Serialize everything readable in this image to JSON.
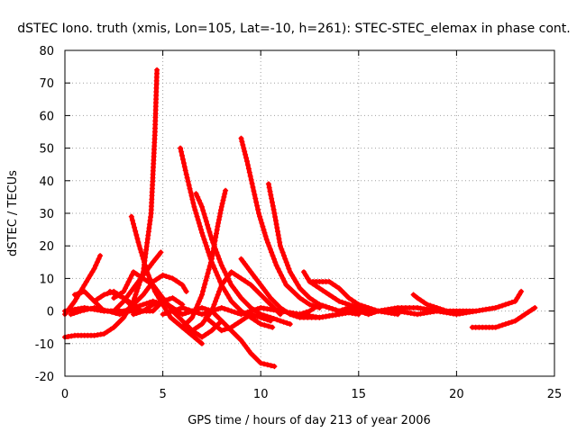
{
  "chart_data": {
    "type": "scatter",
    "title": "dSTEC Iono. truth (xmis, Lon=105, Lat=-10, h=261): STEC-STEC_elemax in phase cont.",
    "xlabel": "GPS time / hours of day 213 of year 2006",
    "ylabel": "dSTEC  / TECUs",
    "xlim": [
      0,
      25
    ],
    "ylim": [
      -20,
      80
    ],
    "xticks": [
      0,
      5,
      10,
      15,
      20,
      25
    ],
    "yticks": [
      -20,
      -10,
      0,
      10,
      20,
      30,
      40,
      50,
      60,
      70,
      80
    ],
    "grid": true,
    "marker": "plus",
    "color": "#ff0000",
    "series": [
      {
        "x": [
          0.0,
          0.5,
          1.0,
          1.5,
          1.8
        ],
        "y": [
          -1,
          3,
          8,
          13,
          17
        ]
      },
      {
        "x": [
          0.0,
          0.5,
          1.0,
          1.5,
          2.0,
          2.5,
          3.0,
          3.5,
          4.0,
          4.4,
          4.6,
          4.7
        ],
        "y": [
          -8,
          -7.5,
          -7.5,
          -7.5,
          -7,
          -5,
          -2,
          3,
          12,
          30,
          55,
          74
        ]
      },
      {
        "x": [
          0.0,
          1.0,
          2.0,
          3.0,
          3.5,
          4.0,
          4.5,
          5.0
        ],
        "y": [
          0,
          1,
          0,
          0,
          1,
          2,
          3,
          2
        ]
      },
      {
        "x": [
          0.3,
          0.8,
          1.5,
          2.2,
          2.8,
          3.3,
          3.8
        ],
        "y": [
          -1,
          0,
          1,
          0,
          -1,
          0,
          0
        ]
      },
      {
        "x": [
          0.5,
          1.0,
          1.5,
          2.0,
          2.5,
          3.0,
          3.5,
          4.0,
          4.5,
          4.9
        ],
        "y": [
          5,
          6,
          3,
          0,
          0,
          3,
          7,
          11,
          15,
          18
        ]
      },
      {
        "x": [
          1.5,
          2.0,
          2.5,
          3.0,
          3.5,
          4.0,
          4.5,
          5.0,
          5.5,
          6.0,
          6.2
        ],
        "y": [
          3,
          5,
          6,
          4,
          2,
          5,
          9,
          11,
          10,
          8,
          6
        ]
      },
      {
        "x": [
          2.3,
          3.0,
          3.5,
          4.0,
          4.5,
          5.0,
          5.5,
          6.0
        ],
        "y": [
          6,
          4,
          1,
          0,
          0,
          3,
          4,
          2
        ]
      },
      {
        "x": [
          2.5,
          3.0,
          3.5,
          4.0,
          4.5,
          5.0,
          5.5,
          6.0,
          6.5,
          7.0,
          7.5,
          8.0
        ],
        "y": [
          4,
          6,
          12,
          10,
          8,
          4,
          0,
          -3,
          -6,
          -8,
          -6,
          -3
        ]
      },
      {
        "x": [
          3.4,
          3.8,
          4.2,
          4.6,
          5.0,
          5.4,
          6.0,
          6.6,
          7.0
        ],
        "y": [
          29,
          20,
          12,
          6,
          2,
          -2,
          -5,
          -8,
          -10
        ]
      },
      {
        "x": [
          3.5,
          4.0,
          4.5,
          5.0,
          5.5,
          6.0,
          6.5,
          7.0,
          7.5,
          8.0,
          8.5,
          9.0,
          9.5,
          10.0,
          10.7
        ],
        "y": [
          -1,
          0,
          2,
          3,
          1,
          -1,
          0,
          1,
          0,
          -3,
          -6,
          -9,
          -13,
          -16,
          -17
        ]
      },
      {
        "x": [
          5.9,
          6.2,
          6.6,
          7.0,
          7.5,
          8.0,
          8.5,
          9.0,
          9.5,
          10.0,
          10.6
        ],
        "y": [
          50,
          42,
          32,
          24,
          15,
          8,
          3,
          0,
          -2,
          -4,
          -5
        ]
      },
      {
        "x": [
          5.0,
          5.5,
          6.0,
          6.5,
          7.0,
          7.5,
          8.0,
          8.5,
          9.0,
          9.5,
          10.0,
          11.0,
          12.0,
          13.0,
          14.0,
          15.0,
          16.0,
          17.0
        ],
        "y": [
          -1,
          0,
          1,
          0,
          -1,
          0,
          1,
          0,
          -1,
          0,
          1,
          0,
          -1,
          -2,
          -1,
          0,
          0,
          -1
        ]
      },
      {
        "x": [
          6.7,
          7.0,
          7.5,
          8.0,
          8.5,
          9.0,
          9.5,
          10.0,
          10.5,
          11.0,
          11.5
        ],
        "y": [
          36,
          32,
          22,
          14,
          8,
          4,
          1,
          -1,
          -2,
          -3,
          -4
        ]
      },
      {
        "x": [
          6.0,
          6.5,
          7.0,
          7.5,
          7.8,
          8.0,
          8.2
        ],
        "y": [
          -5,
          -2,
          5,
          16,
          26,
          32,
          37
        ]
      },
      {
        "x": [
          6.5,
          7.0,
          7.5,
          8.0,
          8.5,
          9.0,
          9.5,
          10.0,
          10.5,
          11.0
        ],
        "y": [
          -6,
          -4,
          0,
          8,
          12,
          10,
          8,
          5,
          2,
          -1
        ]
      },
      {
        "x": [
          7.2,
          7.6,
          8.0,
          8.5,
          9.0,
          9.5,
          10.0,
          10.5
        ],
        "y": [
          -2,
          -4,
          -6,
          -5,
          -3,
          -1,
          -2,
          -3
        ]
      },
      {
        "x": [
          9.0,
          9.3,
          9.6,
          9.9,
          10.3,
          10.8,
          11.3,
          12.0,
          12.5,
          13.0
        ],
        "y": [
          53,
          46,
          38,
          30,
          22,
          14,
          8,
          4,
          2,
          1
        ]
      },
      {
        "x": [
          9.0,
          9.5,
          10.0,
          10.5,
          11.0,
          11.5,
          12.0,
          13.0,
          14.0
        ],
        "y": [
          16,
          12,
          8,
          4,
          1,
          -1,
          -2,
          -2,
          -1
        ]
      },
      {
        "x": [
          10.4,
          10.7,
          11.0,
          11.5,
          12.0,
          12.5,
          13.0,
          13.5,
          14.0,
          15.0
        ],
        "y": [
          39,
          30,
          20,
          12,
          7,
          4,
          2,
          1,
          0,
          -1
        ]
      },
      {
        "x": [
          12.2,
          12.5,
          13.0,
          13.5,
          14.0,
          14.5,
          15.0,
          15.5,
          16.0,
          16.5,
          17.0
        ],
        "y": [
          12,
          9,
          7,
          5,
          3,
          2,
          1,
          0,
          0,
          0,
          0
        ]
      },
      {
        "x": [
          12.0,
          12.5,
          13.0,
          13.5,
          14.0,
          14.5,
          15.0,
          15.5,
          16.0,
          17.0,
          18.0,
          19.0
        ],
        "y": [
          -1,
          0,
          2,
          1,
          0,
          1,
          0,
          -1,
          0,
          0,
          -1,
          0
        ]
      },
      {
        "x": [
          12.5,
          13.0,
          13.5,
          14.0,
          14.5,
          15.0,
          16.0,
          17.0,
          18.0,
          19.0,
          20.0,
          21.0
        ],
        "y": [
          9,
          9,
          9,
          7,
          4,
          2,
          0,
          1,
          1,
          0,
          -1,
          0
        ]
      },
      {
        "x": [
          17.8,
          18.0,
          18.5,
          19.0,
          19.5,
          20.0,
          20.5,
          21.0,
          22.0,
          22.5,
          23.0,
          23.3
        ],
        "y": [
          5,
          4,
          2,
          1,
          0,
          0,
          0,
          0,
          1,
          2,
          3,
          6
        ]
      },
      {
        "x": [
          20.8,
          21.5,
          22.0,
          22.5,
          23.0,
          23.5,
          24.0
        ],
        "y": [
          -5,
          -5,
          -5,
          -4,
          -3,
          -1,
          1
        ]
      }
    ]
  }
}
